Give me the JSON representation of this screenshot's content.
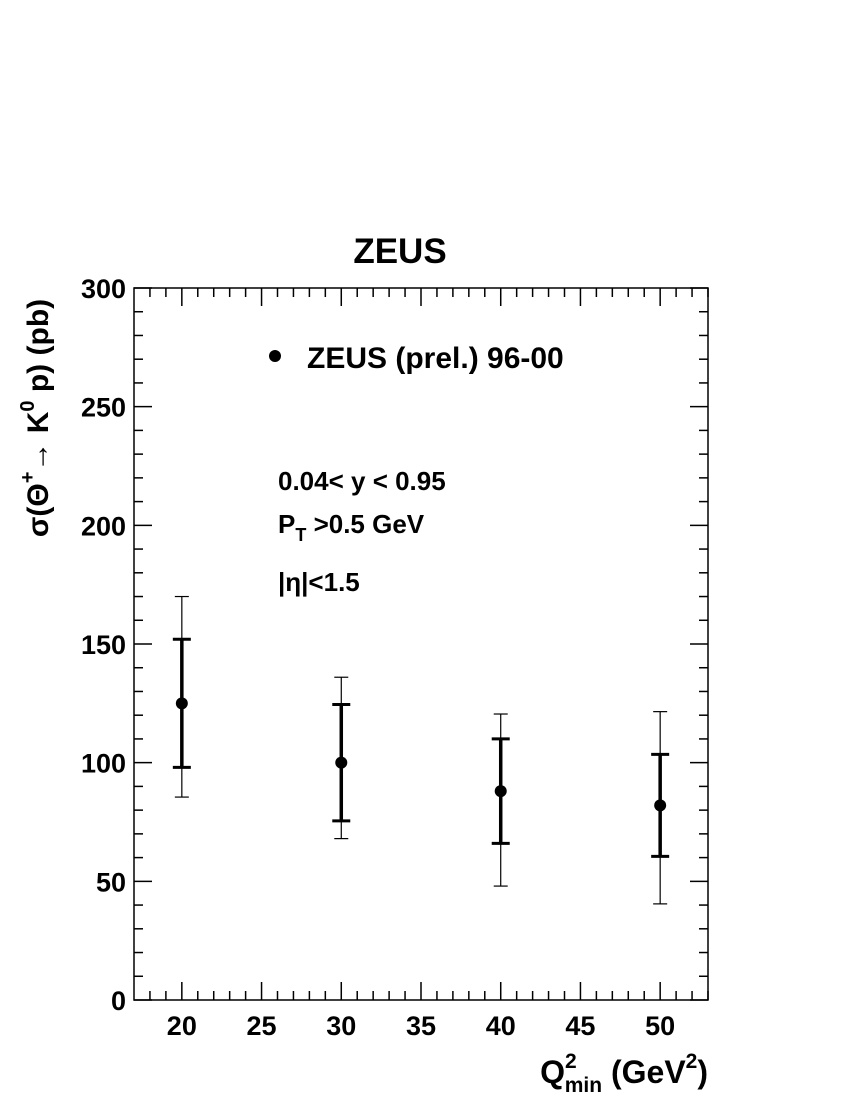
{
  "chart_data": {
    "type": "errorbar",
    "title": "ZEUS",
    "x_label": [
      "Q",
      "2",
      "min",
      " (GeV",
      "2",
      ")"
    ],
    "y_label": [
      "σ(Θ",
      "+",
      "→ K",
      "0",
      " p) (pb)"
    ],
    "annotations": [
      "0.04< y < 0.95",
      "P",
      "T",
      " >0.5 GeV",
      "|η|<1.5"
    ],
    "x": [
      20,
      30,
      40,
      50
    ],
    "series": [
      {
        "name": "ZEUS (prel.) 96-00",
        "color": "#000000",
        "values": [
          125,
          100,
          88,
          82
        ],
        "stat_err": [
          27,
          24.5,
          22,
          21.5
        ],
        "total_err_plus": [
          45,
          36,
          32.5,
          39.5
        ],
        "total_err_minus": [
          39.5,
          32,
          40,
          41.5
        ]
      }
    ],
    "xlim": [
      17,
      53
    ],
    "xticks": [
      20,
      25,
      30,
      35,
      40,
      45,
      50
    ],
    "ylim": [
      0,
      300
    ],
    "yticks": [
      0,
      50,
      100,
      150,
      200,
      250,
      300
    ]
  }
}
